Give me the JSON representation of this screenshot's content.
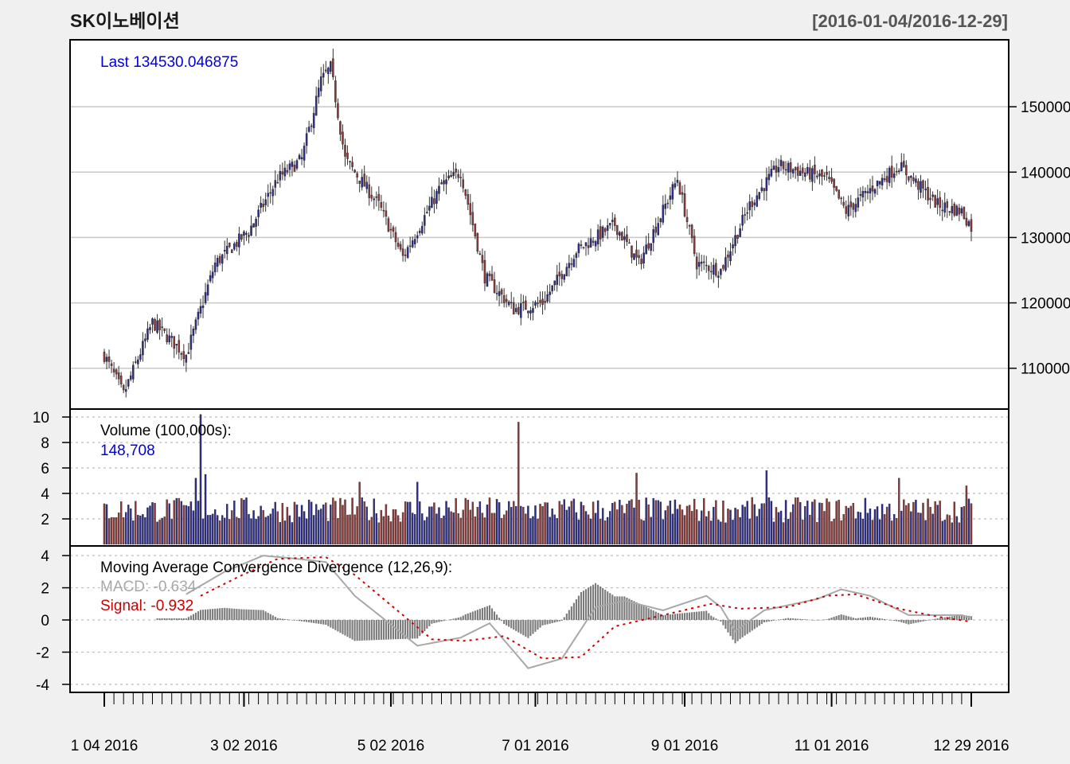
{
  "chart_data": {
    "type": "candlestick",
    "title": "SK이노베이션",
    "date_range": "[2016-01-04/2016-12-29]",
    "colors": {
      "up": "#2d2d8a",
      "down": "#8b3a3a",
      "grid": "#c8c8c8",
      "dotted": "#bdbdbd",
      "macd": "#a8a8a8",
      "signal": "#cc0000",
      "hist": "#7a7a7a",
      "last": "#0000dd",
      "background": "#f0f0f0",
      "panel": "#ffffff"
    },
    "price_panel": {
      "last_label": "Last 134530.046875",
      "y_ticks": [
        "110000",
        "120000",
        "130000",
        "140000",
        "150000"
      ],
      "ylim": [
        104000,
        160000
      ],
      "grid": true,
      "close_anchors": [
        [
          0,
          112000
        ],
        [
          8,
          106000
        ],
        [
          20,
          117000
        ],
        [
          34,
          112000
        ],
        [
          46,
          126000
        ],
        [
          60,
          131000
        ],
        [
          72,
          139000
        ],
        [
          82,
          142000
        ],
        [
          90,
          154000
        ],
        [
          94,
          156000
        ],
        [
          100,
          142000
        ],
        [
          114,
          135000
        ],
        [
          124,
          127000
        ],
        [
          140,
          138000
        ],
        [
          148,
          140000
        ],
        [
          158,
          124000
        ],
        [
          170,
          119000
        ],
        [
          182,
          120000
        ],
        [
          196,
          128000
        ],
        [
          212,
          132000
        ],
        [
          222,
          126000
        ],
        [
          238,
          139000
        ],
        [
          246,
          126000
        ],
        [
          256,
          125000
        ],
        [
          268,
          135000
        ],
        [
          280,
          141000
        ],
        [
          290,
          140000
        ],
        [
          300,
          139000
        ],
        [
          308,
          134000
        ],
        [
          320,
          138000
        ],
        [
          330,
          141000
        ],
        [
          346,
          135000
        ],
        [
          356,
          134000
        ],
        [
          366,
          128000
        ],
        [
          376,
          134000
        ]
      ],
      "volatility": 2000
    },
    "volume_panel": {
      "label": "Volume (100,000s):",
      "last_value": "148,708",
      "y_ticks": [
        "2",
        "4",
        "6",
        "8",
        "10"
      ],
      "ylim": [
        0,
        10.5
      ],
      "baseline": 2.5,
      "spikes": [
        [
          40,
          10.2
        ],
        [
          172,
          9.6
        ],
        [
          275,
          5.8
        ],
        [
          221,
          5.6
        ],
        [
          106,
          4.9
        ],
        [
          38,
          5.2
        ],
        [
          330,
          5.2
        ],
        [
          358,
          4.6
        ],
        [
          42,
          5.5
        ],
        [
          130,
          4.9
        ]
      ]
    },
    "macd_panel": {
      "label": "Moving Average Convergence Divergence (12,26,9):",
      "macd_label": "MACD: -0.634",
      "signal_label": "Signal: -0.932",
      "y_ticks": [
        "-4",
        "-2",
        "0",
        "2",
        "4"
      ],
      "ylim": [
        -4.4,
        4.5
      ],
      "macd_anchors": [
        [
          34,
          1.6
        ],
        [
          50,
          3.0
        ],
        [
          66,
          4.0
        ],
        [
          80,
          3.8
        ],
        [
          92,
          3.6
        ],
        [
          104,
          1.5
        ],
        [
          120,
          -0.4
        ],
        [
          130,
          -1.6
        ],
        [
          148,
          -1.1
        ],
        [
          160,
          -0.2
        ],
        [
          176,
          -3.0
        ],
        [
          190,
          -2.4
        ],
        [
          204,
          0.8
        ],
        [
          216,
          1.2
        ],
        [
          232,
          0.6
        ],
        [
          250,
          1.5
        ],
        [
          256,
          0.8
        ],
        [
          262,
          -0.7
        ],
        [
          274,
          0.6
        ],
        [
          296,
          1.3
        ],
        [
          306,
          1.9
        ],
        [
          318,
          1.5
        ],
        [
          334,
          0.3
        ],
        [
          356,
          0.3
        ],
        [
          372,
          -0.4
        ],
        [
          382,
          -1.3
        ],
        [
          384,
          -0.6
        ]
      ],
      "signal_anchors": [
        [
          40,
          1.5
        ],
        [
          56,
          2.7
        ],
        [
          72,
          3.8
        ],
        [
          92,
          3.9
        ],
        [
          104,
          2.8
        ],
        [
          120,
          0.8
        ],
        [
          136,
          -1.2
        ],
        [
          150,
          -1.3
        ],
        [
          166,
          -1.0
        ],
        [
          182,
          -2.4
        ],
        [
          198,
          -2.3
        ],
        [
          212,
          -0.4
        ],
        [
          232,
          0.3
        ],
        [
          252,
          1.0
        ],
        [
          264,
          0.7
        ],
        [
          284,
          0.8
        ],
        [
          300,
          1.5
        ],
        [
          312,
          1.6
        ],
        [
          330,
          0.7
        ],
        [
          346,
          0.2
        ],
        [
          364,
          -0.2
        ],
        [
          376,
          -0.6
        ],
        [
          384,
          -0.9
        ]
      ],
      "hist_from": 22
    },
    "x_ticks": [
      {
        "label": "1 04 2016",
        "date": "2016-01-04"
      },
      {
        "label": "3 02 2016",
        "date": "2016-03-02"
      },
      {
        "label": "5 02 2016",
        "date": "2016-05-02"
      },
      {
        "label": "7 01 2016",
        "date": "2016-07-01"
      },
      {
        "label": "9 01 2016",
        "date": "2016-09-01"
      },
      {
        "label": "11 01 2016",
        "date": "2016-11-01"
      },
      {
        "label": "12 29 2016",
        "date": "2016-12-29"
      }
    ],
    "x_tick_day_offsets": [
      0,
      58,
      119,
      179,
      241,
      302,
      360
    ],
    "n_days": 361,
    "bar_every": 1
  }
}
